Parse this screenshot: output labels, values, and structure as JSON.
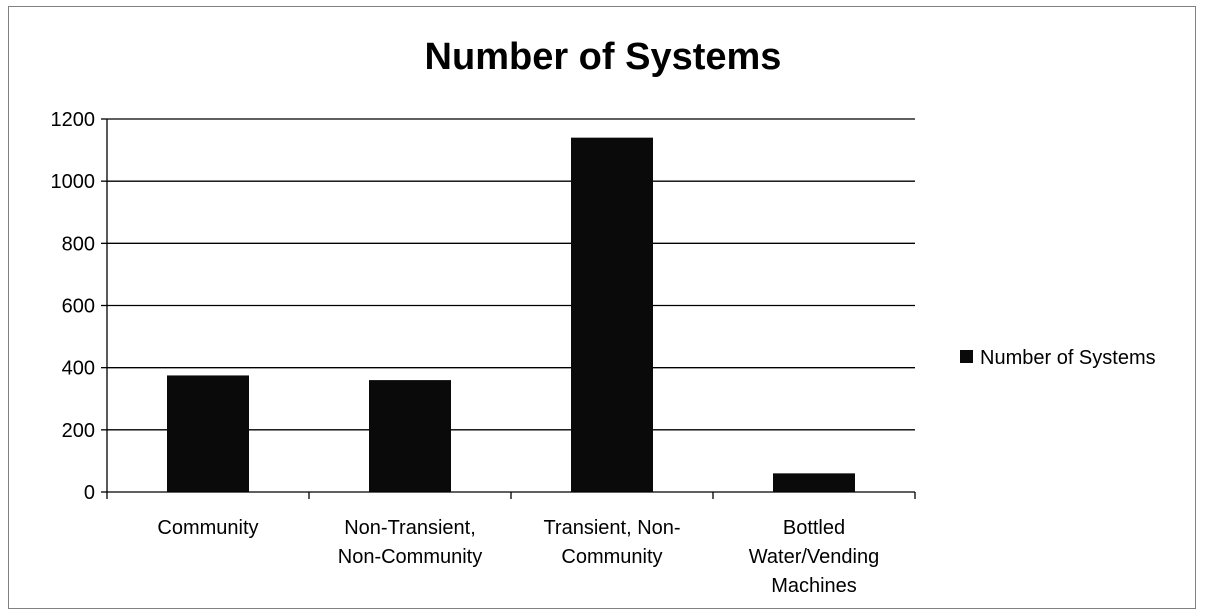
{
  "chart_data": {
    "type": "bar",
    "title": "Number of Systems",
    "xlabel": "",
    "ylabel": "",
    "categories": [
      "Community",
      "Non-Transient, Non-Community",
      "Transient, Non-Community",
      "Bottled Water/Vending Machines"
    ],
    "category_lines": [
      [
        "Community"
      ],
      [
        "Non-Transient,",
        "Non-Community"
      ],
      [
        "Transient, Non-",
        "Community"
      ],
      [
        "Bottled",
        "Water/Vending",
        "Machines"
      ]
    ],
    "series": [
      {
        "name": "Number of Systems",
        "values": [
          375,
          360,
          1140,
          60
        ],
        "color": "#0a0a0a"
      }
    ],
    "ylim": [
      0,
      1200
    ],
    "yticks": [
      0,
      200,
      400,
      600,
      800,
      1000,
      1200
    ],
    "grid": true,
    "legend_position": "right"
  }
}
